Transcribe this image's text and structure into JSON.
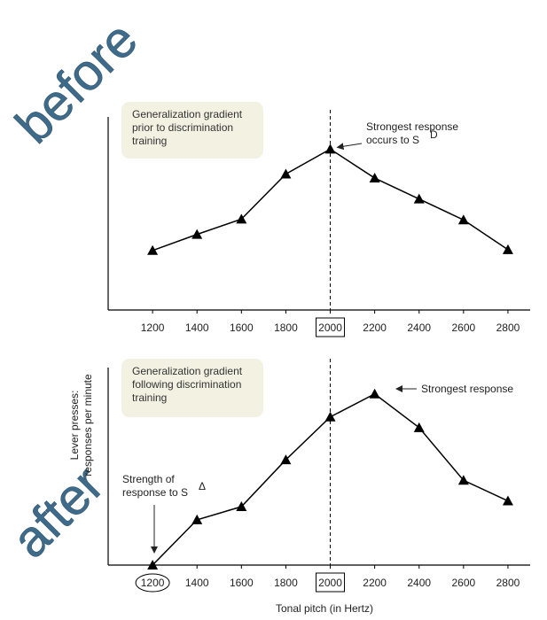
{
  "overlay_labels": {
    "top": "before",
    "bottom": "after"
  },
  "colors": {
    "overlay_text": "#3f6b8a",
    "note_box": "#f3f1e2",
    "line": "#000000"
  },
  "chart_data": [
    {
      "type": "line",
      "panel": "top",
      "x": [
        1200,
        1400,
        1600,
        1800,
        2000,
        2200,
        2400,
        2600,
        2800
      ],
      "values": [
        74,
        94,
        113,
        169,
        200,
        164,
        138,
        112,
        75
      ],
      "xlim": [
        1000,
        2900
      ],
      "ylim": [
        0,
        240
      ],
      "marker": "triangle",
      "reference_line_x": 2000,
      "boxed_tick": 2000,
      "note_lines": [
        "Generalization gradient",
        "prior to discrimination",
        "training"
      ],
      "annotations": [
        {
          "x": 2000,
          "y": 200,
          "lines": [
            "Strongest response",
            "occurs to S"
          ],
          "superscript": "D"
        }
      ]
    },
    {
      "type": "line",
      "panel": "bottom",
      "x": [
        1200,
        1400,
        1600,
        1800,
        2000,
        2200,
        2400,
        2600,
        2800
      ],
      "values": [
        0,
        55,
        71,
        128,
        180,
        208,
        167,
        103,
        78
      ],
      "xlim": [
        1000,
        2900
      ],
      "ylim": [
        0,
        240
      ],
      "marker": "triangle",
      "reference_line_x": 2000,
      "boxed_tick": 2000,
      "circled_tick": 1200,
      "note_lines": [
        "Generalization gradient",
        "following discrimination",
        "training"
      ],
      "annotations": [
        {
          "x": 2200,
          "y": 208,
          "lines": [
            "Strongest response"
          ]
        },
        {
          "x": 1200,
          "y": 0,
          "lines": [
            "Strength of",
            "response to S"
          ],
          "superscript": "Δ"
        }
      ],
      "xlabel": "Tonal pitch (in Hertz)"
    }
  ],
  "shared_ylabel": [
    "Lever presses:",
    "responses per minute"
  ]
}
